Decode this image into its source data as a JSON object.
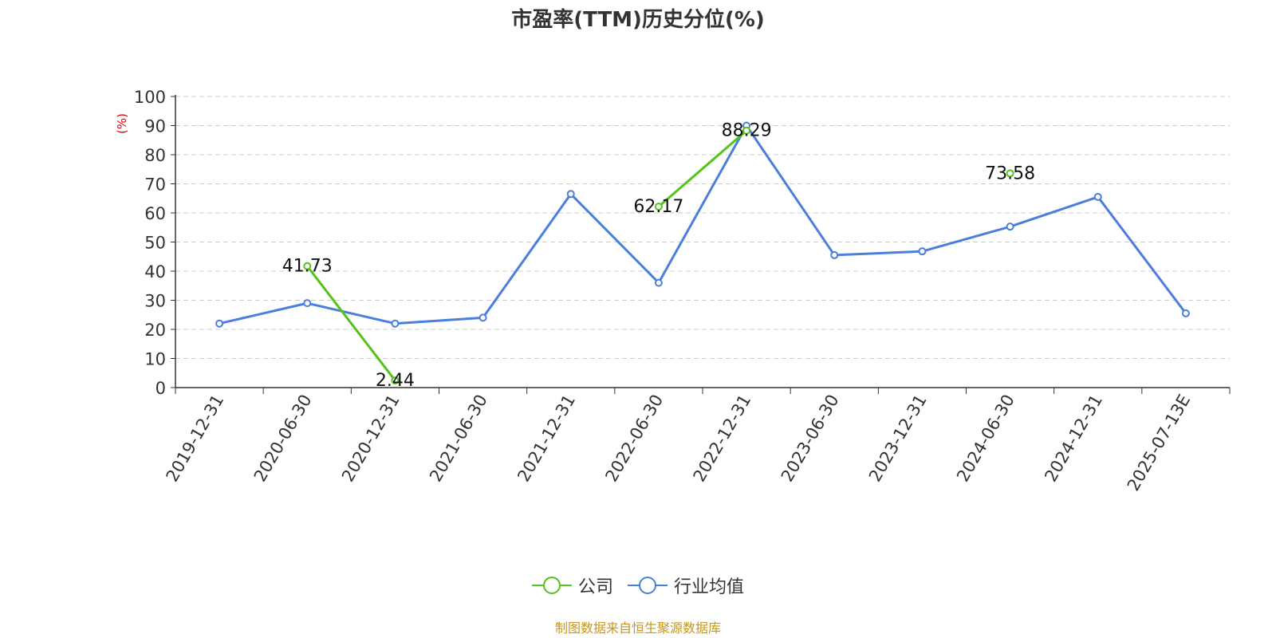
{
  "chart_data": {
    "type": "line",
    "title": "市盈率(TTM)历史分位(%)",
    "xlabel": "",
    "ylabel": "(%)",
    "ylim": [
      0,
      100
    ],
    "yticks": [
      0,
      10,
      20,
      30,
      40,
      50,
      60,
      70,
      80,
      90,
      100
    ],
    "categories": [
      "2019-12-31",
      "2020-06-30",
      "2020-12-31",
      "2021-06-30",
      "2021-12-31",
      "2022-06-30",
      "2022-12-31",
      "2023-06-30",
      "2023-12-31",
      "2024-06-30",
      "2024-12-31",
      "2025-07-13E"
    ],
    "grid": true,
    "legend_position": "bottom",
    "series": [
      {
        "name": "公司",
        "color": "#52c41a",
        "values": [
          null,
          41.73,
          2.44,
          null,
          null,
          62.17,
          88.29,
          null,
          null,
          73.58,
          null,
          null
        ],
        "data_labels": [
          null,
          "41.73",
          "2.44",
          null,
          null,
          "62.17",
          "88.29",
          null,
          null,
          "73.58",
          null,
          null
        ]
      },
      {
        "name": "行业均值",
        "color": "#4a7fdc",
        "values": [
          22,
          29,
          22,
          24,
          66.5,
          36,
          90,
          45.5,
          46.8,
          55.3,
          65.5,
          25.5
        ]
      }
    ],
    "source": "制图数据来自恒生聚源数据库"
  }
}
